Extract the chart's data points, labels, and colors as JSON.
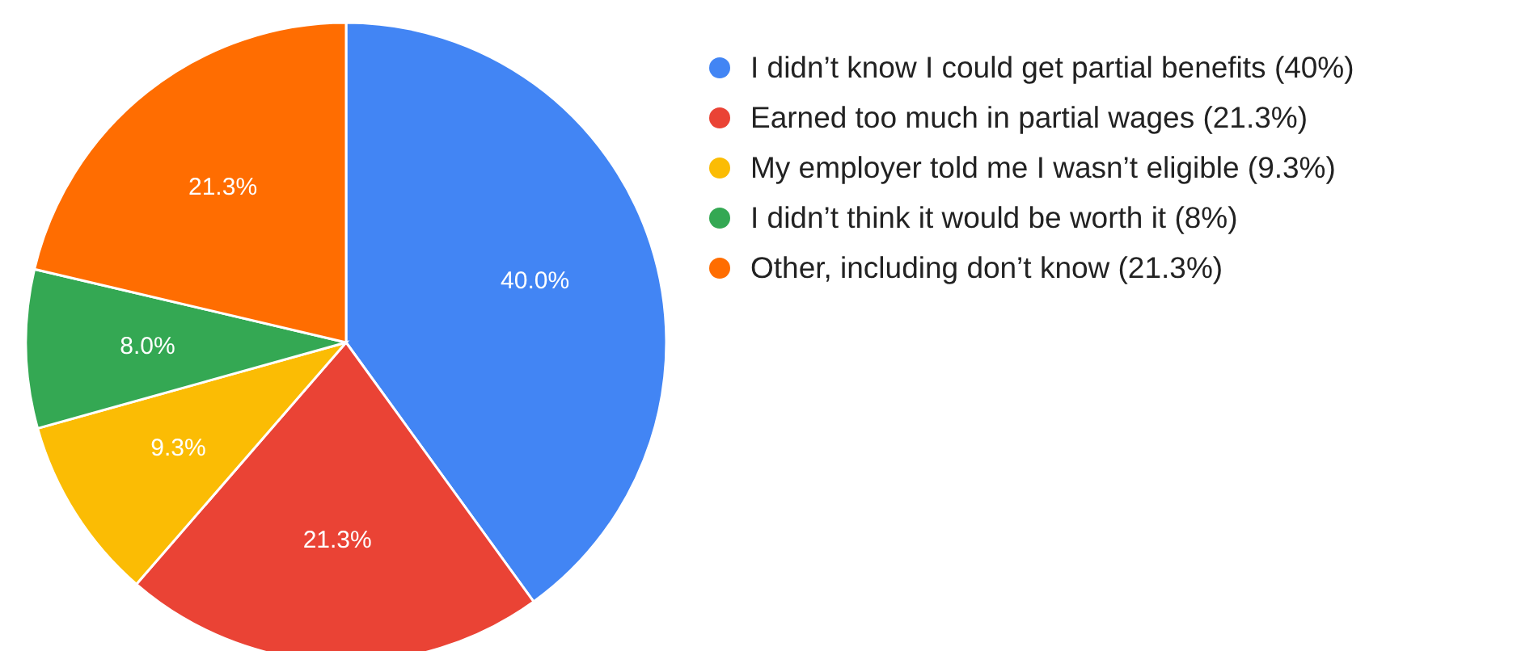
{
  "chart_data": {
    "type": "pie",
    "categories": [
      "I didn’t know I could get partial benefits (40%)",
      "Earned too much in partial wages (21.3%)",
      "My employer told me I wasn’t eligible (9.3%)",
      "I didn’t think it would be worth it (8%)",
      "Other, including don’t know (21.3%)"
    ],
    "values": [
      40,
      21.3,
      9.3,
      8,
      21.3
    ],
    "colors": [
      "#4285f4",
      "#ea4335",
      "#fbbc04",
      "#34a853",
      "#ff6d01"
    ],
    "value_labels": [
      "40.0%",
      "21.3%",
      "9.3%",
      "8.0%",
      "21.3%"
    ],
    "legend": "right"
  }
}
